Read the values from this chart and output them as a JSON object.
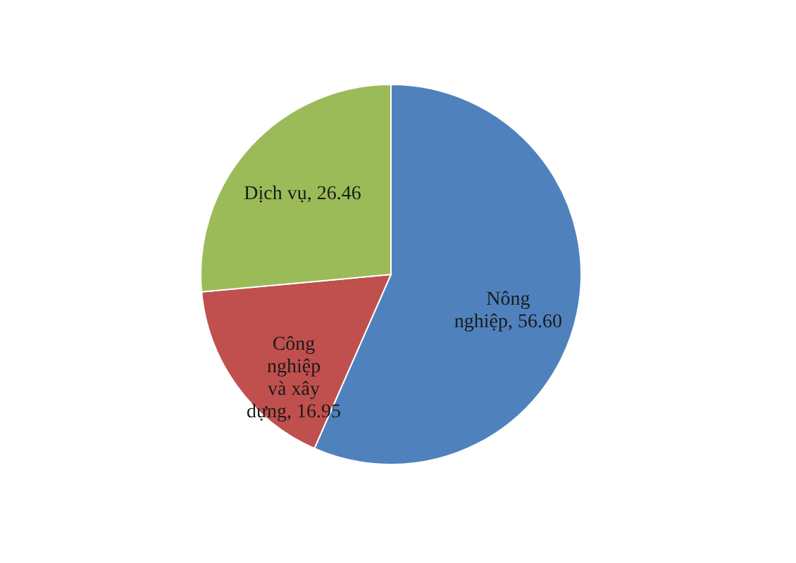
{
  "chart_data": {
    "type": "pie",
    "categories": [
      "Nông nghiệp",
      "Công nghiệp và xây dựng",
      "Dịch vụ"
    ],
    "values": [
      56.6,
      16.95,
      26.46
    ],
    "colors": [
      "#4f81bd",
      "#c0504d",
      "#9bbb59"
    ],
    "data_labels": true,
    "value_labels": [
      "56.60",
      "16.95",
      "26.46"
    ],
    "legend": false
  }
}
